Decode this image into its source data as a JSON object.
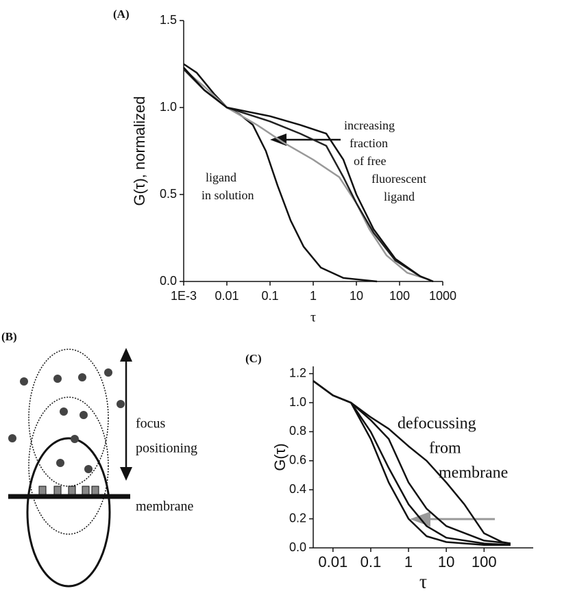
{
  "chart_data": [
    {
      "type": "line",
      "panel_label": "(A)",
      "y_label": "G(τ), normalized",
      "x_label": "τ",
      "log_x": true,
      "xlim": [
        0.001,
        1000
      ],
      "ylim": [
        0,
        1.5
      ],
      "xticks": [
        {
          "value": 0.001,
          "label": "1E-3"
        },
        0.01,
        0.1,
        1,
        10,
        100,
        1000
      ],
      "yticks": [
        {
          "value": 0,
          "label": "0.0"
        },
        0.5,
        {
          "value": 1,
          "label": "1.0"
        },
        1.5
      ],
      "series": [
        {
          "color": "#111111",
          "x": [
            0.001,
            0.002,
            0.005,
            0.01,
            0.02,
            0.04,
            0.08,
            0.15,
            0.3,
            0.6,
            1.5,
            5,
            30
          ],
          "values": [
            1.25,
            1.2,
            1.08,
            1.0,
            0.96,
            0.9,
            0.75,
            0.55,
            0.35,
            0.2,
            0.08,
            0.02,
            0
          ]
        },
        {
          "color": "#999999",
          "x": [
            0.001,
            0.003,
            0.01,
            0.05,
            0.2,
            1,
            4,
            10,
            20,
            50,
            150,
            500
          ],
          "values": [
            1.22,
            1.12,
            1.0,
            0.9,
            0.8,
            0.7,
            0.6,
            0.45,
            0.3,
            0.15,
            0.05,
            0.01
          ]
        },
        {
          "color": "#222222",
          "x": [
            0.001,
            0.003,
            0.01,
            0.1,
            0.5,
            2,
            5,
            10,
            25,
            80,
            300,
            600
          ],
          "values": [
            1.22,
            1.1,
            1.0,
            0.92,
            0.85,
            0.78,
            0.6,
            0.45,
            0.28,
            0.12,
            0.03,
            0
          ]
        },
        {
          "color": "#111111",
          "x": [
            0.001,
            0.003,
            0.01,
            0.1,
            0.5,
            2,
            5,
            10,
            25,
            80,
            300,
            600
          ],
          "values": [
            1.23,
            1.1,
            1.0,
            0.95,
            0.9,
            0.85,
            0.7,
            0.5,
            0.3,
            0.13,
            0.03,
            0
          ]
        }
      ],
      "annotations": [
        [
          "increasing",
          "fraction",
          "of free",
          "fluorescent",
          "ligand"
        ],
        [
          "ligand",
          "in solution"
        ]
      ]
    },
    {
      "type": "line",
      "panel_label": "(C)",
      "y_label": "G(τ)",
      "x_label": "τ",
      "log_x": true,
      "xlim": [
        0.003,
        2000
      ],
      "ylim": [
        0,
        1.25
      ],
      "xticks": [
        0.01,
        0.1,
        1,
        10,
        100
      ],
      "yticks": [
        {
          "value": 0,
          "label": "0.0"
        },
        0.2,
        0.4,
        0.6,
        0.8,
        {
          "value": 1,
          "label": "1.0"
        },
        1.2
      ],
      "series": [
        {
          "color": "#111111",
          "x": [
            0.003,
            0.01,
            0.03,
            0.1,
            0.3,
            1,
            3,
            10,
            100,
            500
          ],
          "values": [
            1.15,
            1.05,
            1.0,
            0.75,
            0.45,
            0.2,
            0.08,
            0.04,
            0.02,
            0.02
          ]
        },
        {
          "color": "#111111",
          "x": [
            0.003,
            0.01,
            0.03,
            0.1,
            0.3,
            1,
            3,
            10,
            100,
            500
          ],
          "values": [
            1.15,
            1.05,
            1.0,
            0.8,
            0.55,
            0.3,
            0.15,
            0.07,
            0.03,
            0.02
          ]
        },
        {
          "color": "#111111",
          "x": [
            0.003,
            0.01,
            0.03,
            0.1,
            0.3,
            1,
            3,
            10,
            100,
            500
          ],
          "values": [
            1.15,
            1.05,
            1.0,
            0.88,
            0.75,
            0.45,
            0.27,
            0.15,
            0.05,
            0.03
          ]
        },
        {
          "color": "#111111",
          "x": [
            0.003,
            0.01,
            0.03,
            0.1,
            0.3,
            1,
            3,
            10,
            30,
            100,
            300,
            500
          ],
          "values": [
            1.15,
            1.05,
            1.0,
            0.9,
            0.82,
            0.7,
            0.6,
            0.45,
            0.3,
            0.1,
            0.04,
            0.03
          ]
        }
      ],
      "annotations": [
        [
          "defocussing",
          "from",
          "membrane"
        ]
      ]
    }
  ],
  "diagram": {
    "panel_label": "(B)",
    "focus_label": [
      "focus",
      "positioning"
    ],
    "membrane_label": "membrane"
  }
}
